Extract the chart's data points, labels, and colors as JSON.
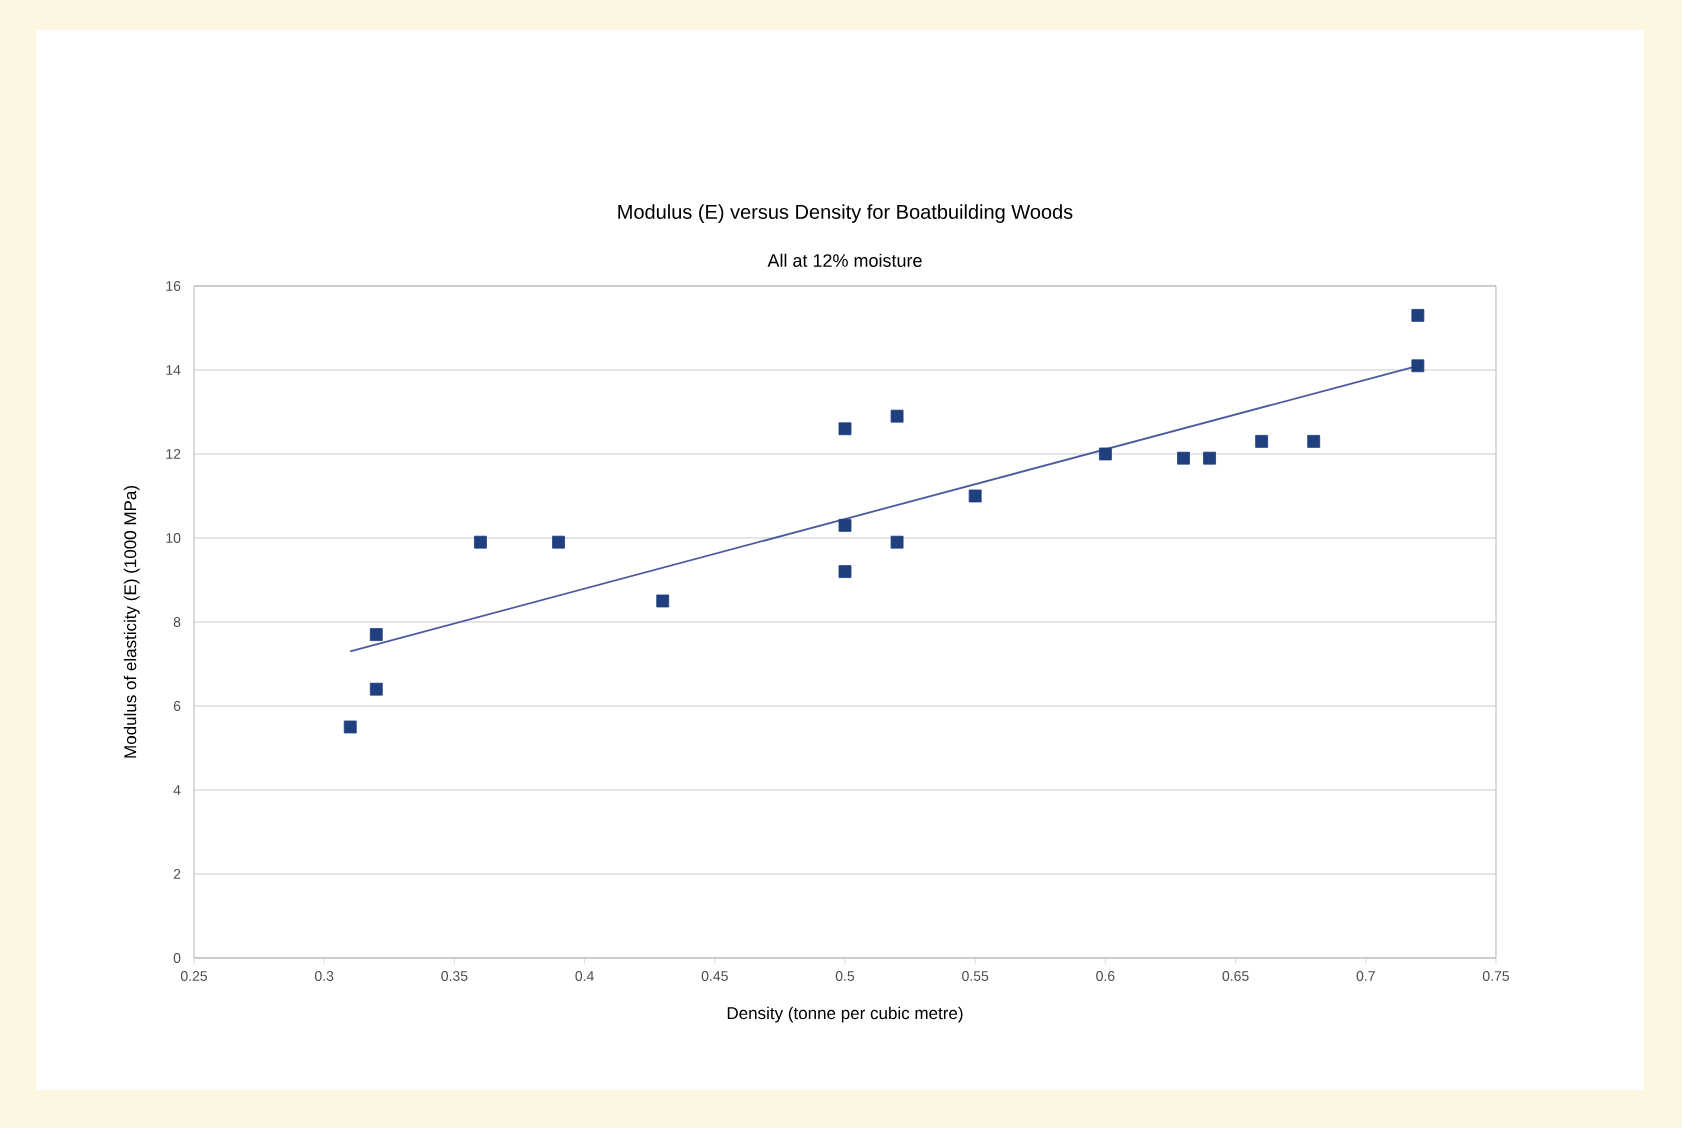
{
  "chart_data": {
    "type": "scatter",
    "title": "Modulus (E) versus Density for Boatbuilding Woods",
    "subtitle": "All at 12% moisture",
    "xlabel": "Density (tonne per cubic metre)",
    "ylabel": "Modulus of elasticity (E) (1000 MPa)",
    "series": [
      {
        "color": "#1f3f7f",
        "marker": "square",
        "x": [
          0.31,
          0.32,
          0.32,
          0.36,
          0.39,
          0.43,
          0.5,
          0.5,
          0.5,
          0.52,
          0.52,
          0.55,
          0.6,
          0.63,
          0.64,
          0.66,
          0.68,
          0.72,
          0.72
        ],
        "values": [
          5.5,
          7.7,
          6.4,
          9.9,
          9.9,
          8.5,
          12.6,
          10.3,
          9.2,
          12.9,
          9.9,
          11.0,
          12.0,
          11.9,
          11.9,
          12.3,
          12.3,
          14.1,
          15.3
        ]
      },
      {
        "type": "line",
        "color": "#4a5a9f",
        "marker": "none",
        "line_style": "solid",
        "x": [
          0.31,
          0.72
        ],
        "values": [
          7.3,
          14.1
        ]
      }
    ],
    "xlim": [
      0.25,
      0.75
    ],
    "xticks": [
      0.25,
      0.3,
      0.35,
      0.4,
      0.45,
      0.5,
      0.55,
      0.6,
      0.65,
      0.7,
      0.75
    ],
    "ylim": [
      0,
      16
    ],
    "yticks": [
      0,
      2,
      4,
      6,
      8,
      10,
      12,
      14,
      16
    ],
    "grid": "y"
  }
}
